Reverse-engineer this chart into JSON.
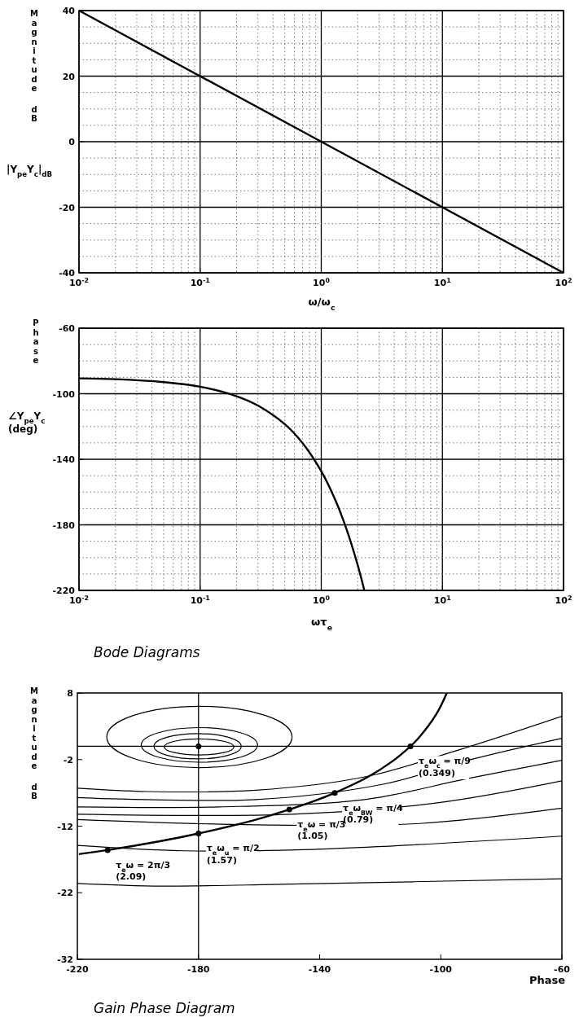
{
  "chart_data": [
    {
      "type": "line",
      "ylabel": "Magnitude dB",
      "xlabel": "ω/ω$_{c}$",
      "annotations": [
        "|Y$_{pe}$Y$_{c}$|$_{dB}$"
      ],
      "log": "x",
      "grid": true,
      "xlim": [
        0.01,
        100
      ],
      "ylim": [
        -40,
        40
      ],
      "xticks": [
        {
          "value": 0.01,
          "label": "10$^{-2}$"
        },
        {
          "value": 0.1,
          "label": "10$^{-1}$"
        },
        {
          "value": 1,
          "label": "10$^{0}$"
        },
        {
          "value": 10,
          "label": "10$^{1}$"
        },
        {
          "value": 100,
          "label": "10$^{2}$"
        }
      ],
      "yticks": [
        -40,
        -20,
        0,
        20,
        40
      ],
      "series": [
        {
          "color": "#000000",
          "x": [
            0.01,
            100
          ],
          "values": [
            40,
            -40
          ]
        }
      ]
    },
    {
      "type": "line",
      "ylabel": "Phase",
      "xlabel": "ωτ$_{e}$",
      "annotations": [
        "∠Y$_{pe}$Y$_{c}$\n(deg)",
        "Bode Diagrams"
      ],
      "log": "x",
      "grid": true,
      "xlim": [
        0.01,
        100
      ],
      "ylim": [
        -220,
        -60
      ],
      "xticks": [
        {
          "value": 0.01,
          "label": "10$^{-2}$"
        },
        {
          "value": 0.1,
          "label": "10$^{-1}$"
        },
        {
          "value": 1,
          "label": "10$^{0}$"
        },
        {
          "value": 10,
          "label": "10$^{1}$"
        },
        {
          "value": 100,
          "label": "10$^{2}$"
        }
      ],
      "yticks": [
        -220,
        -180,
        -140,
        -100,
        -60
      ],
      "series": [
        {
          "color": "#000000",
          "x": [
            0.01,
            0.02,
            0.05,
            0.1,
            0.2,
            0.3,
            0.5,
            0.7,
            1,
            1.3,
            1.6,
            2,
            2.26
          ],
          "values": [
            -90.6,
            -91.1,
            -92.9,
            -95.7,
            -101.5,
            -107.2,
            -118.6,
            -130.1,
            -147.3,
            -164.5,
            -181.7,
            -204.6,
            -219.5
          ]
        }
      ]
    },
    {
      "type": "line",
      "ylabel": "Magnitude dB",
      "xlabel": "Phase",
      "grid": false,
      "xlim": [
        -220,
        -60
      ],
      "ylim": [
        -32,
        8
      ],
      "xticks": [
        -220,
        -180,
        -140,
        -100,
        -60
      ],
      "yticks": [
        -32,
        -22,
        -12,
        -2,
        8
      ],
      "ref_lines": [
        {
          "axis": "x",
          "value": -180,
          "color": "#000000"
        },
        {
          "axis": "y",
          "value": 0,
          "color": "#000000"
        }
      ],
      "annotations": [
        {
          "text": "τ$_{e}$ω$_{c}$ = π/9\n(0.349)",
          "x": -110,
          "y": 0
        },
        {
          "text": "τ$_{e}$ω$_{BW}$ = π/4\n(0.79)",
          "x": -135,
          "y": -7
        },
        {
          "text": "τ$_{e}$ω = π/3\n(1.05)",
          "x": -150,
          "y": -9.5
        },
        {
          "text": "τ$_{e}$ω$_{u}$ = π/2\n(1.57)",
          "x": -180,
          "y": -13.1
        },
        {
          "text": "τ$_{e}$ω = 2π/3\n(2.09)",
          "x": -210,
          "y": -15.6
        },
        "Gain Phase Diagram"
      ],
      "series": [
        {
          "color": "#000000",
          "x": [
            -98.0,
            -101.5,
            -107.2,
            -110.0,
            -115.8,
            -124.4,
            -135.0,
            -141.6,
            -150.0,
            -161.6,
            -180.0,
            -193.1,
            -210.0,
            -219.5
          ],
          "values": [
            8.0,
            4.8,
            1.3,
            0,
            -2.2,
            -4.7,
            -7.0,
            -8.2,
            -9.5,
            -11.1,
            -13.1,
            -14.3,
            -15.6,
            -16.2
          ]
        },
        {
          "color": "#000000",
          "x": [
            -60,
            -95.1,
            -125.1,
            -161.1,
            -197.1,
            -220
          ],
          "values": [
            4.5,
            -0.7,
            -4.6,
            -6.6,
            -6.8,
            -6.3
          ]
        },
        {
          "color": "#000000",
          "x": [
            -60,
            -89.2,
            -119.1,
            -161.1,
            -220
          ],
          "values": [
            1.2,
            -1.9,
            -5.7,
            -8.0,
            -7.7
          ]
        },
        {
          "color": "#000000",
          "x": [
            -60,
            -91.6,
            -125.1,
            -173.1,
            -220
          ],
          "values": [
            -2.1,
            -4.9,
            -8.0,
            -9.1,
            -9.1
          ]
        },
        {
          "color": "#000000",
          "x": [
            -60,
            -101.1,
            -149.1,
            -220
          ],
          "values": [
            -5.2,
            -8.5,
            -10.2,
            -10.2
          ]
        },
        {
          "color": "#000000",
          "x": [
            -60,
            -107.1,
            -161.1,
            -220
          ],
          "values": [
            -9.3,
            -11.6,
            -11.8,
            -11.0
          ]
        },
        {
          "color": "#000000",
          "x": [
            -60,
            -137.1,
            -185.1,
            -220
          ],
          "values": [
            -13.5,
            -15.4,
            -15.7,
            -14.9
          ]
        },
        {
          "color": "#000000",
          "x": [
            -60,
            -149.1,
            -192.3,
            -220
          ],
          "values": [
            -19.9,
            -20.7,
            -21.0,
            -20.6
          ]
        },
        {
          "type": "scatter",
          "marker": "circle",
          "color": "#000000",
          "x": [
            -110,
            -135,
            -150,
            -180,
            -210,
            -180
          ],
          "values": [
            0,
            -7,
            -9.5,
            -13.1,
            -15.6,
            0
          ]
        }
      ]
    }
  ]
}
